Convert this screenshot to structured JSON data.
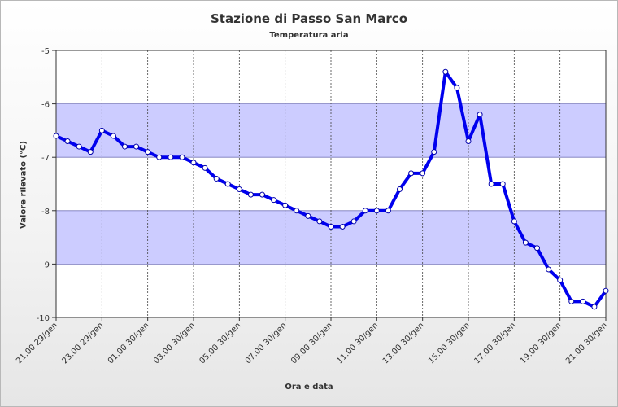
{
  "chart_data": {
    "type": "line",
    "title": "Stazione di Passo San Marco",
    "subtitle": "Temperatura aria",
    "ylabel": "Valore rilevato (°C)",
    "xlabel": "Ora e data",
    "ylim": [
      -10,
      -5
    ],
    "y_ticks": [
      -5,
      -6,
      -7,
      -8,
      -9,
      -10
    ],
    "x_tick_labels": [
      "21.00 29/gen",
      "23.00 29/gen",
      "01.00 30/gen",
      "03.00 30/gen",
      "05.00 30/gen",
      "07.00 30/gen",
      "09.00 30/gen",
      "11.00 30/gen",
      "13.00 30/gen",
      "15.00 30/gen",
      "17.00 30/gen",
      "19.00 30/gen",
      "21.00 30/gen"
    ],
    "grid": true,
    "line_color": "#0000ee",
    "band_color": "#ccccff",
    "series": [
      {
        "values": [
          -6.6,
          -6.7,
          -6.8,
          -6.9,
          -6.5,
          -6.6,
          -6.8,
          -6.8,
          -6.9,
          -7.0,
          -7.0,
          -7.0,
          -7.1,
          -7.2,
          -7.4,
          -7.5,
          -7.6,
          -7.7,
          -7.7,
          -7.8,
          -7.9,
          -8.0,
          -8.1,
          -8.2,
          -8.3,
          -8.3,
          -8.2,
          -8.0,
          -8.0,
          -8.0,
          -7.6,
          -7.3,
          -7.3,
          -6.9,
          -5.4,
          -5.7,
          -6.7,
          -6.2,
          -7.5,
          -7.5,
          -8.2,
          -8.6,
          -8.7,
          -9.1,
          -9.3,
          -9.7,
          -9.7,
          -9.8,
          -9.5
        ]
      }
    ]
  }
}
